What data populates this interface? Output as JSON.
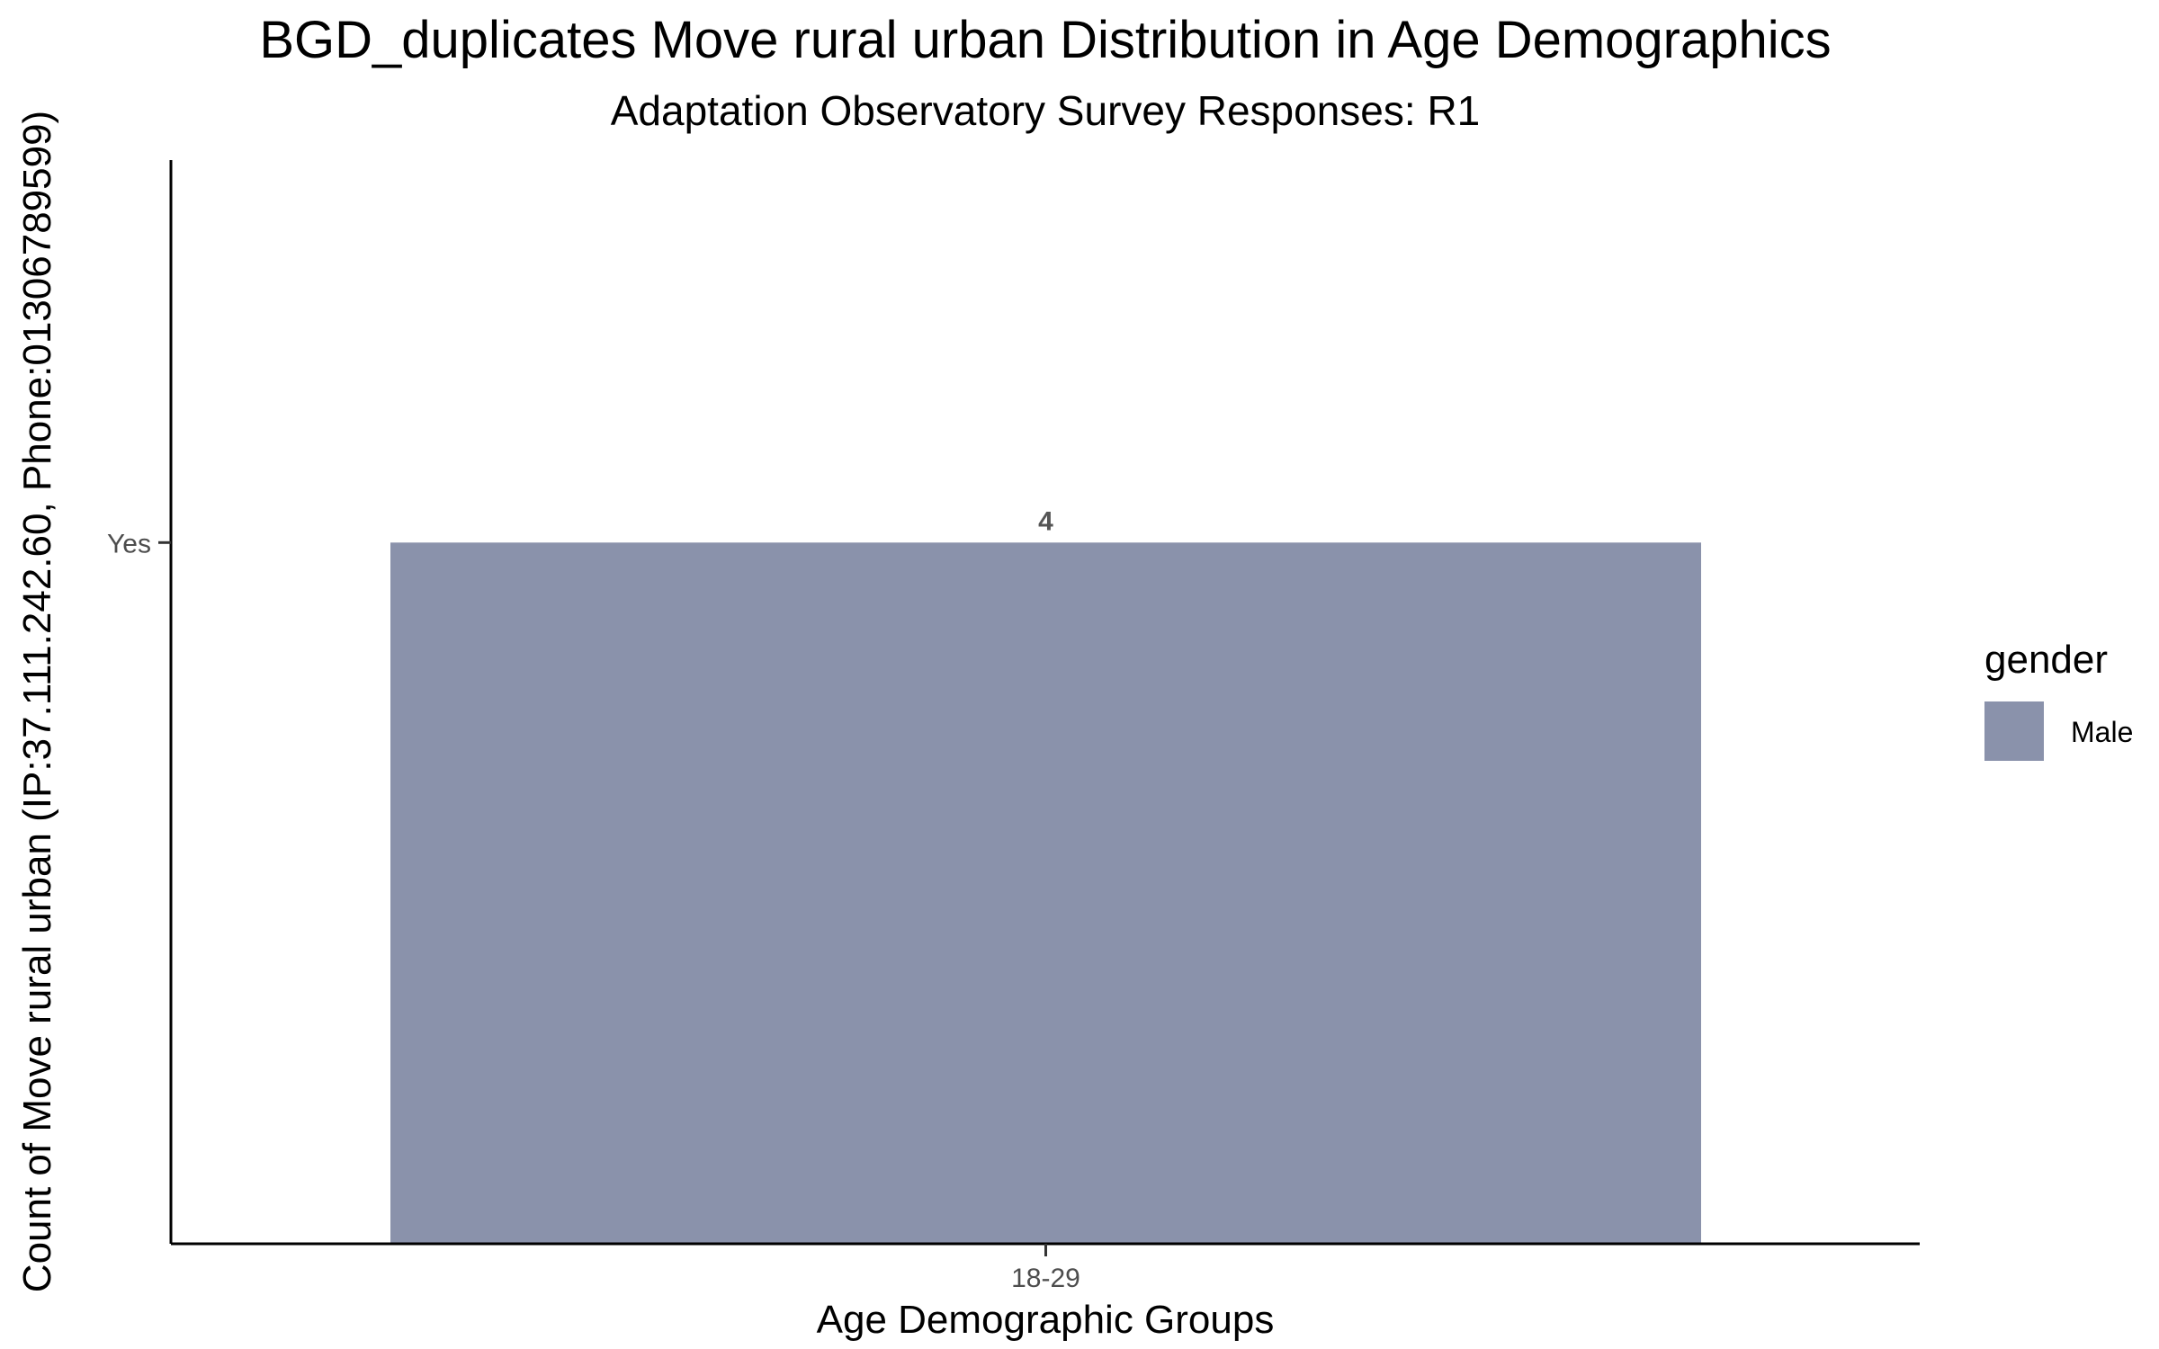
{
  "chart_data": {
    "type": "bar",
    "title": "BGD_duplicates Move rural urban Distribution in Age Demographics",
    "subtitle": "Adaptation Observatory Survey Responses: R1",
    "xlabel": "Age Demographic Groups",
    "ylabel": "Count of Move rural urban (IP:37.111.242.60, Phone:01306789599)",
    "categories": [
      "18-29"
    ],
    "y_ticks": [
      "Yes"
    ],
    "series": [
      {
        "name": "Male",
        "values": [
          4
        ],
        "y_category": [
          "Yes"
        ],
        "color": "#8a92ab"
      }
    ],
    "data_labels": [
      "4"
    ],
    "legend": {
      "title": "gender",
      "position": "right",
      "items": [
        {
          "label": "Male",
          "color": "#8a92ab"
        }
      ]
    },
    "grid": false
  }
}
